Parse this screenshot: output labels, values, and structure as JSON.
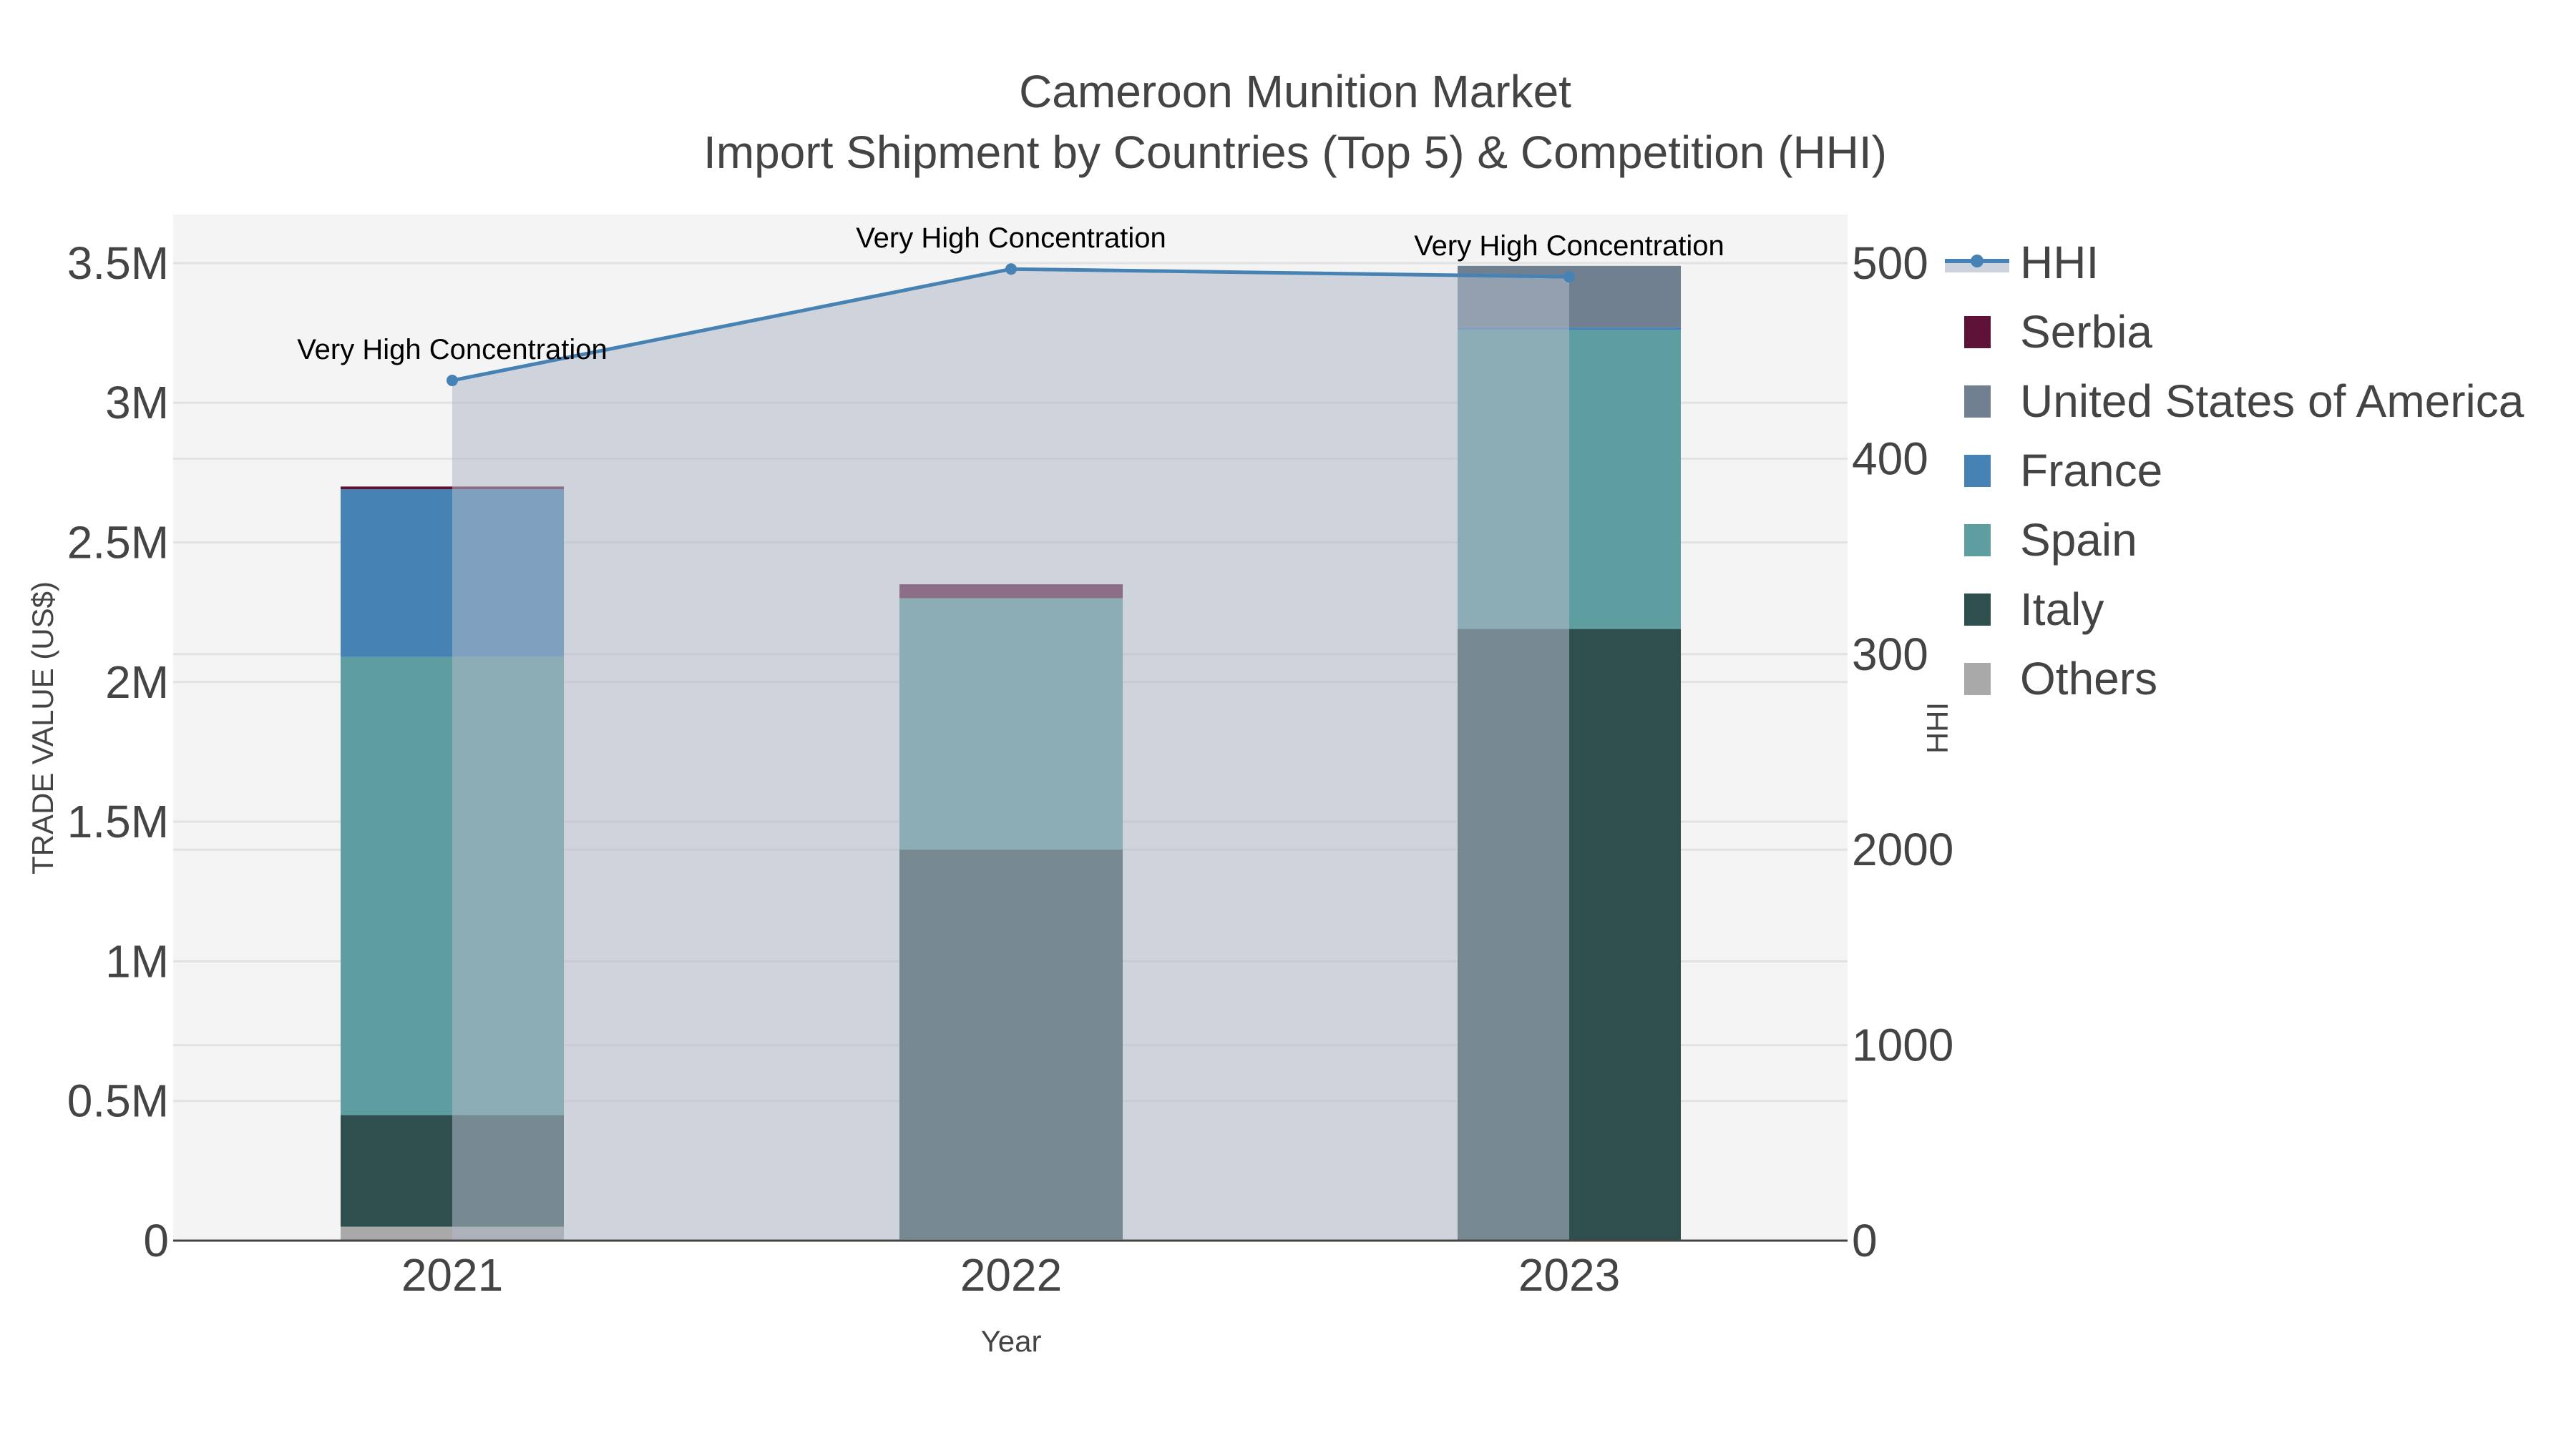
{
  "title": {
    "line1": "Cameroon Munition Market",
    "line2": "Import Shipment by Countries (Top 5) & Competition (HHI)"
  },
  "axes": {
    "x_title": "Year",
    "y_left_title": "TRADE VALUE (US$)",
    "y_right_title": "HHI",
    "x_ticks": [
      "2021",
      "2022",
      "2023"
    ],
    "y_left_ticks": [
      "0",
      "0.5M",
      "1M",
      "1.5M",
      "2M",
      "2.5M",
      "3M",
      "3.5M"
    ],
    "y_right_ticks": [
      "0",
      "1000",
      "2000",
      "300",
      "400",
      "500"
    ]
  },
  "legend": {
    "items": [
      {
        "label": "HHI",
        "color": "#4682b4",
        "type": "line"
      },
      {
        "label": "Serbia",
        "color": "#5f1237",
        "type": "bar"
      },
      {
        "label": "United States of America",
        "color": "#708090",
        "type": "bar"
      },
      {
        "label": "France",
        "color": "#4682b4",
        "type": "bar"
      },
      {
        "label": "Spain",
        "color": "#5f9ea0",
        "type": "bar"
      },
      {
        "label": "Italy",
        "color": "#2f4f4f",
        "type": "bar"
      },
      {
        "label": "Others",
        "color": "#a9a9a9",
        "type": "bar"
      }
    ]
  },
  "annotations": [
    "Very High Concentration",
    "Very High Concentration",
    "Very High Concentration"
  ],
  "chart_data": {
    "type": "bar",
    "title": "Cameroon Munition Market — Import Shipment by Countries (Top 5) & Competition (HHI)",
    "xlabel": "Year",
    "ylabel": "TRADE VALUE (US$)",
    "y2label": "HHI",
    "categories": [
      "2021",
      "2022",
      "2023"
    ],
    "stacked": true,
    "ylim": [
      0,
      3650000
    ],
    "y2lim": [
      0,
      5180
    ],
    "grid": true,
    "legend_position": "right",
    "series": [
      {
        "name": "Others",
        "color": "#a9a9a9",
        "values": [
          50000,
          5000,
          0
        ]
      },
      {
        "name": "Italy",
        "color": "#2f4f4f",
        "values": [
          400000,
          1395000,
          2190000
        ]
      },
      {
        "name": "Spain",
        "color": "#5f9ea0",
        "values": [
          1640000,
          900000,
          1070000
        ]
      },
      {
        "name": "France",
        "color": "#4682b4",
        "values": [
          600000,
          0,
          10000
        ]
      },
      {
        "name": "United States of America",
        "color": "#708090",
        "values": [
          0,
          0,
          220000
        ]
      },
      {
        "name": "Serbia",
        "color": "#5f1237",
        "values": [
          10000,
          50000,
          0
        ]
      }
    ],
    "line_series": [
      {
        "name": "HHI",
        "axis": "right",
        "color": "#4682b4",
        "fill": "tozeroy",
        "values": [
          4400,
          4970,
          4930
        ],
        "labels": [
          "Very High Concentration",
          "Very High Concentration",
          "Very High Concentration"
        ]
      }
    ]
  }
}
